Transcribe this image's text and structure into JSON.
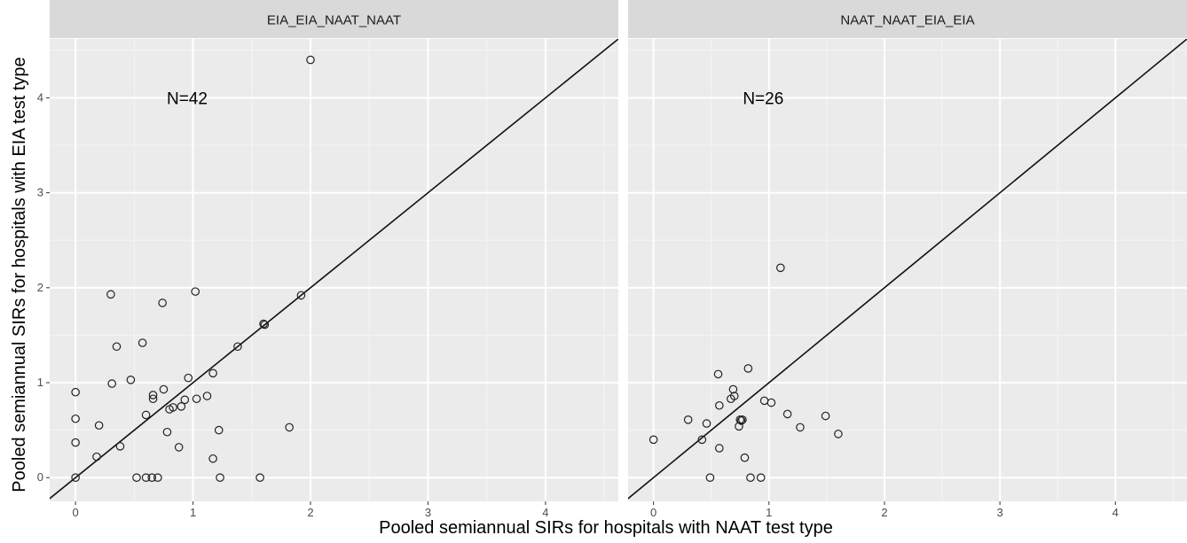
{
  "chart_data": {
    "type": "scatter",
    "xlabel": "Pooled semiannual SIRs for hospitals with NAAT test type",
    "ylabel": "Pooled semiannual SIRs for hospitals with EIA test type",
    "xlim": [
      -0.22,
      4.62
    ],
    "ylim": [
      -0.25,
      4.62
    ],
    "x_ticks": [
      0,
      1,
      2,
      3,
      4
    ],
    "y_ticks": [
      0,
      1,
      2,
      3,
      4
    ],
    "grid": true,
    "reference_line": "y = x",
    "point_style": "open-circle",
    "panels": [
      {
        "strip_label": "EIA_EIA_NAAT_NAAT",
        "annotation": "N=42",
        "annotation_pos": [
          0.95,
          4.0
        ],
        "points": [
          [
            0,
            0.9
          ],
          [
            0,
            0.62
          ],
          [
            0,
            0.37
          ],
          [
            0,
            0
          ],
          [
            0.18,
            0.22
          ],
          [
            0.2,
            0.55
          ],
          [
            0.3,
            1.93
          ],
          [
            0.31,
            0.99
          ],
          [
            0.35,
            1.38
          ],
          [
            0.38,
            0.33
          ],
          [
            0.47,
            1.03
          ],
          [
            0.52,
            0
          ],
          [
            0.57,
            1.42
          ],
          [
            0.6,
            0.66
          ],
          [
            0.6,
            0
          ],
          [
            0.65,
            0
          ],
          [
            0.66,
            0.83
          ],
          [
            0.66,
            0.87
          ],
          [
            0.7,
            0
          ],
          [
            0.74,
            1.84
          ],
          [
            0.75,
            0.93
          ],
          [
            0.78,
            0.48
          ],
          [
            0.8,
            0.72
          ],
          [
            0.83,
            0.74
          ],
          [
            0.88,
            0.32
          ],
          [
            0.9,
            0.75
          ],
          [
            0.93,
            0.82
          ],
          [
            0.96,
            1.05
          ],
          [
            1.02,
            1.96
          ],
          [
            1.03,
            0.83
          ],
          [
            1.12,
            0.86
          ],
          [
            1.17,
            1.1
          ],
          [
            1.17,
            0.2
          ],
          [
            1.22,
            0.5
          ],
          [
            1.23,
            0
          ],
          [
            1.38,
            1.38
          ],
          [
            1.57,
            0
          ],
          [
            1.6,
            1.62
          ],
          [
            1.61,
            1.61
          ],
          [
            1.82,
            0.53
          ],
          [
            1.92,
            1.92
          ],
          [
            2.0,
            4.4
          ]
        ]
      },
      {
        "strip_label": "NAAT_NAAT_EIA_EIA",
        "annotation": "N=26",
        "annotation_pos": [
          0.95,
          4.0
        ],
        "points": [
          [
            0,
            0.4
          ],
          [
            0.3,
            0.61
          ],
          [
            0.42,
            0.4
          ],
          [
            0.46,
            0.57
          ],
          [
            0.49,
            0
          ],
          [
            0.56,
            1.09
          ],
          [
            0.57,
            0.76
          ],
          [
            0.57,
            0.31
          ],
          [
            0.67,
            0.83
          ],
          [
            0.69,
            0.93
          ],
          [
            0.7,
            0.86
          ],
          [
            0.74,
            0.54
          ],
          [
            0.75,
            0.61
          ],
          [
            0.77,
            0.61
          ],
          [
            0.79,
            0.21
          ],
          [
            0.82,
            1.15
          ],
          [
            0.84,
            0
          ],
          [
            0.93,
            0
          ],
          [
            0.96,
            0.81
          ],
          [
            1.02,
            0.79
          ],
          [
            1.1,
            2.21
          ],
          [
            1.16,
            0.67
          ],
          [
            1.27,
            0.53
          ],
          [
            1.49,
            0.65
          ],
          [
            1.6,
            0.46
          ],
          [
            0.76,
            0.6
          ]
        ]
      }
    ]
  }
}
